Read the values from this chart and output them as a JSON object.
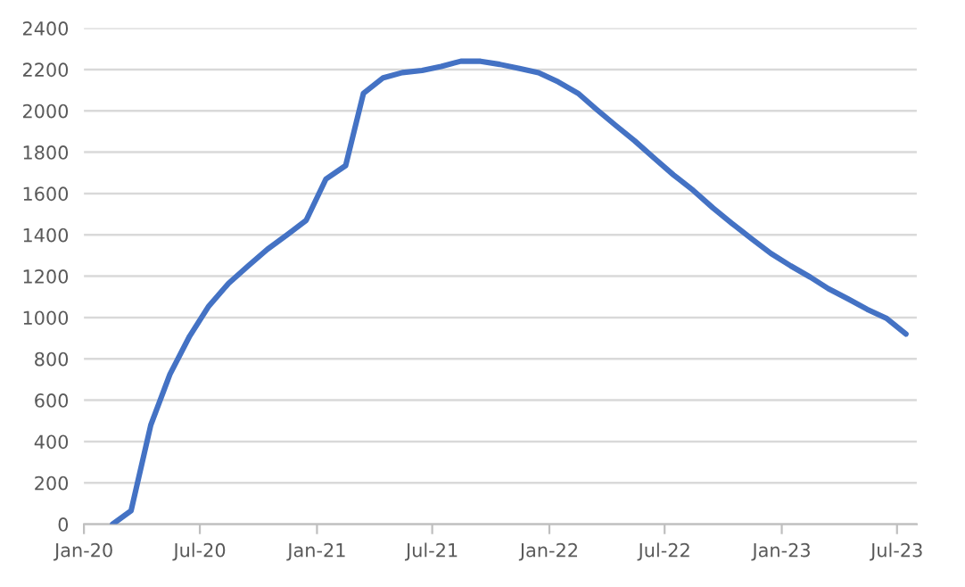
{
  "chart_data": {
    "type": "line",
    "x": [
      "2020-02-15",
      "2020-03-15",
      "2020-04-15",
      "2020-05-15",
      "2020-06-15",
      "2020-07-15",
      "2020-08-15",
      "2020-09-15",
      "2020-10-15",
      "2020-11-15",
      "2020-12-15",
      "2021-01-15",
      "2021-02-15",
      "2021-03-15",
      "2021-04-15",
      "2021-05-15",
      "2021-06-15",
      "2021-07-15",
      "2021-08-15",
      "2021-09-15",
      "2021-10-15",
      "2021-11-15",
      "2021-12-15",
      "2022-01-15",
      "2022-02-15",
      "2022-03-15",
      "2022-04-15",
      "2022-05-15",
      "2022-06-15",
      "2022-07-15",
      "2022-08-15",
      "2022-09-15",
      "2022-10-15",
      "2022-11-15",
      "2022-12-15",
      "2023-01-15",
      "2023-02-15",
      "2023-03-15",
      "2023-04-15",
      "2023-05-15",
      "2023-06-15",
      "2023-07-15"
    ],
    "series": [
      {
        "color": "#4472c4",
        "values": [
          0,
          65,
          480,
          725,
          910,
          1055,
          1165,
          1250,
          1330,
          1400,
          1470,
          1670,
          1735,
          2085,
          2160,
          2185,
          2195,
          2215,
          2240,
          2240,
          2225,
          2205,
          2185,
          2140,
          2085,
          2010,
          1930,
          1855,
          1770,
          1690,
          1615,
          1530,
          1455,
          1380,
          1310,
          1250,
          1195,
          1140,
          1090,
          1040,
          995,
          920
        ]
      }
    ],
    "xlim": [
      "2020-01-01",
      "2023-08-01"
    ],
    "xticks": [
      {
        "value": "2020-01-01",
        "label": "Jan-20"
      },
      {
        "value": "2020-07-01",
        "label": "Jul-20"
      },
      {
        "value": "2021-01-01",
        "label": "Jan-21"
      },
      {
        "value": "2021-07-01",
        "label": "Jul-21"
      },
      {
        "value": "2022-01-01",
        "label": "Jan-22"
      },
      {
        "value": "2022-07-01",
        "label": "Jul-22"
      },
      {
        "value": "2023-01-01",
        "label": "Jan-23"
      },
      {
        "value": "2023-07-01",
        "label": "Jul-23"
      }
    ],
    "ylim": [
      0,
      2400
    ],
    "yticks": [
      0,
      200,
      400,
      600,
      800,
      1000,
      1200,
      1400,
      1600,
      1800,
      2000,
      2200,
      2400
    ],
    "grid": "y",
    "line_style": "solid",
    "marker": "none"
  }
}
